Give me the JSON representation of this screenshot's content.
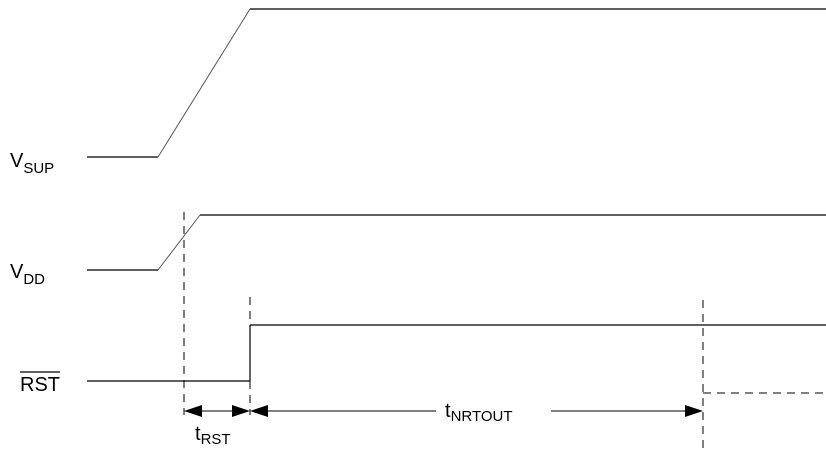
{
  "signals": {
    "vsup": {
      "main": "V",
      "sub": "SUP"
    },
    "vdd": {
      "main": "V",
      "sub": "DD"
    },
    "rst": {
      "text": "RST"
    }
  },
  "timings": {
    "trst": {
      "main": "t",
      "sub": "RST"
    },
    "tnrtout": {
      "main": "t",
      "sub": "NRTOUT"
    }
  }
}
